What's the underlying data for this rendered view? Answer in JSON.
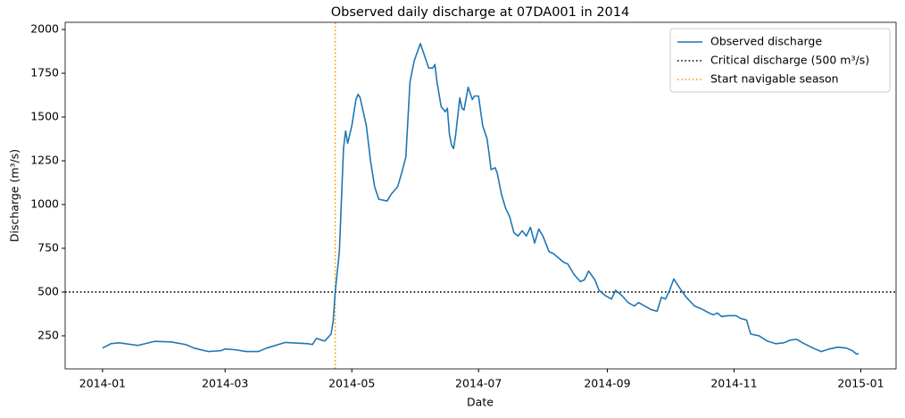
{
  "chart_data": {
    "type": "line",
    "title": "Observed daily discharge at 07DA001 in 2014",
    "xlabel": "Date",
    "ylabel": "Discharge (m³/s)",
    "x": [
      "2014-01-01",
      "2014-01-05",
      "2014-01-09",
      "2014-01-18",
      "2014-01-26",
      "2014-02-03",
      "2014-02-10",
      "2014-02-14",
      "2014-02-21",
      "2014-02-27",
      "2014-03-01",
      "2014-03-06",
      "2014-03-11",
      "2014-03-17",
      "2014-03-21",
      "2014-03-30",
      "2014-04-10",
      "2014-04-12",
      "2014-04-14",
      "2014-04-18",
      "2014-04-21",
      "2014-04-22",
      "2014-04-23",
      "2014-04-25",
      "2014-04-27",
      "2014-04-28",
      "2014-04-29",
      "2014-05-01",
      "2014-05-03",
      "2014-05-04",
      "2014-05-05",
      "2014-05-08",
      "2014-05-10",
      "2014-05-12",
      "2014-05-14",
      "2014-05-18",
      "2014-05-20",
      "2014-05-23",
      "2014-05-25",
      "2014-05-27",
      "2014-05-29",
      "2014-05-31",
      "2014-06-03",
      "2014-06-05",
      "2014-06-07",
      "2014-06-09",
      "2014-06-10",
      "2014-06-11",
      "2014-06-13",
      "2014-06-15",
      "2014-06-16",
      "2014-06-17",
      "2014-06-18",
      "2014-06-19",
      "2014-06-20",
      "2014-06-22",
      "2014-06-23",
      "2014-06-24",
      "2014-06-26",
      "2014-06-28",
      "2014-06-29",
      "2014-07-01",
      "2014-07-03",
      "2014-07-05",
      "2014-07-06",
      "2014-07-07",
      "2014-07-09",
      "2014-07-10",
      "2014-07-12",
      "2014-07-14",
      "2014-07-16",
      "2014-07-18",
      "2014-07-20",
      "2014-07-22",
      "2014-07-24",
      "2014-07-26",
      "2014-07-28",
      "2014-07-30",
      "2014-08-01",
      "2014-08-04",
      "2014-08-06",
      "2014-08-09",
      "2014-08-11",
      "2014-08-13",
      "2014-08-16",
      "2014-08-19",
      "2014-08-21",
      "2014-08-23",
      "2014-08-26",
      "2014-08-28",
      "2014-08-31",
      "2014-09-03",
      "2014-09-05",
      "2014-09-08",
      "2014-09-11",
      "2014-09-14",
      "2014-09-16",
      "2014-09-22",
      "2014-09-25",
      "2014-09-27",
      "2014-09-29",
      "2014-10-01",
      "2014-10-03",
      "2014-10-06",
      "2014-10-09",
      "2014-10-13",
      "2014-10-17",
      "2014-10-20",
      "2014-10-22",
      "2014-10-24",
      "2014-10-26",
      "2014-10-29",
      "2014-11-02",
      "2014-11-04",
      "2014-11-07",
      "2014-11-09",
      "2014-11-13",
      "2014-11-17",
      "2014-11-21",
      "2014-11-25",
      "2014-11-28",
      "2014-12-01",
      "2014-12-04",
      "2014-12-09",
      "2014-12-13",
      "2014-12-17",
      "2014-12-21",
      "2014-12-25",
      "2014-12-28",
      "2014-12-30",
      "2014-12-31"
    ],
    "series": [
      {
        "name": "Observed discharge",
        "color": "#1f77b4",
        "values": [
          180,
          205,
          210,
          195,
          218,
          215,
          200,
          180,
          160,
          165,
          175,
          170,
          160,
          160,
          180,
          212,
          205,
          200,
          235,
          220,
          260,
          330,
          500,
          730,
          1320,
          1420,
          1350,
          1450,
          1600,
          1630,
          1610,
          1450,
          1250,
          1100,
          1030,
          1020,
          1060,
          1100,
          1180,
          1270,
          1700,
          1820,
          1920,
          1850,
          1780,
          1780,
          1800,
          1700,
          1560,
          1530,
          1550,
          1400,
          1340,
          1320,
          1400,
          1610,
          1550,
          1540,
          1670,
          1600,
          1620,
          1620,
          1450,
          1380,
          1300,
          1200,
          1210,
          1180,
          1060,
          980,
          930,
          840,
          820,
          850,
          820,
          870,
          780,
          860,
          820,
          730,
          720,
          690,
          670,
          660,
          600,
          560,
          570,
          620,
          570,
          510,
          480,
          460,
          510,
          480,
          440,
          420,
          440,
          400,
          390,
          470,
          460,
          510,
          575,
          520,
          470,
          420,
          400,
          380,
          370,
          380,
          360,
          365,
          365,
          350,
          340,
          260,
          250,
          220,
          205,
          210,
          225,
          230,
          210,
          180,
          160,
          175,
          185,
          180,
          165,
          145,
          150
        ]
      }
    ],
    "hlines": [
      {
        "name": "Critical discharge (500 m³/s)",
        "value": 500,
        "color": "#000000"
      }
    ],
    "vlines": [
      {
        "name": "Start navigable season",
        "x": "2014-04-23",
        "color": "#ff9900"
      }
    ],
    "xlim": [
      "2013-12-14",
      "2015-01-18"
    ],
    "xticks": [
      {
        "value": "2014-01-01",
        "label": "2014-01"
      },
      {
        "value": "2014-03-01",
        "label": "2014-03"
      },
      {
        "value": "2014-05-01",
        "label": "2014-05"
      },
      {
        "value": "2014-07-01",
        "label": "2014-07"
      },
      {
        "value": "2014-09-01",
        "label": "2014-09"
      },
      {
        "value": "2014-11-01",
        "label": "2014-11"
      },
      {
        "value": "2015-01-01",
        "label": "2015-01"
      }
    ],
    "ylim": [
      61,
      2041
    ],
    "yticks": [
      250,
      500,
      750,
      1000,
      1250,
      1500,
      1750,
      2000
    ],
    "legend": "upper right",
    "grid": false
  }
}
